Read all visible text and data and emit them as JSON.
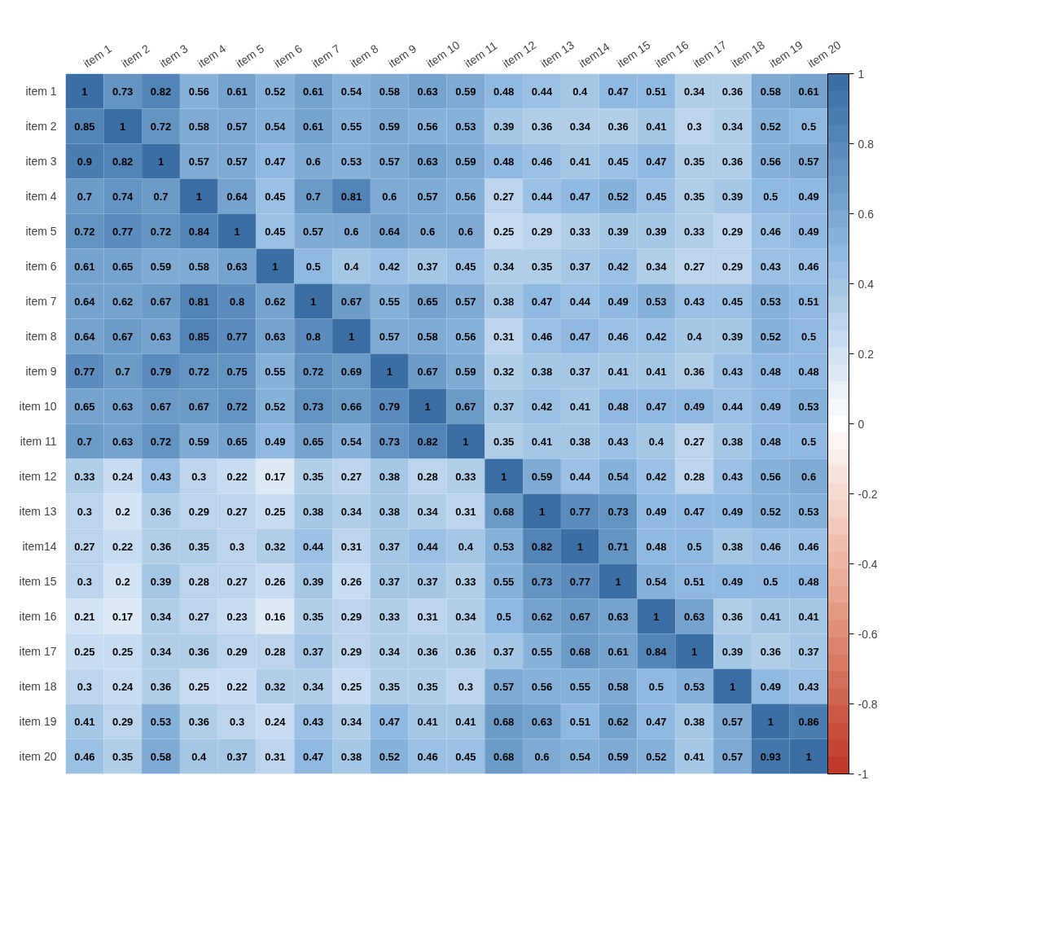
{
  "chart_data": {
    "type": "heatmap",
    "categories": [
      "item 1",
      "item 2",
      "item 3",
      "item 4",
      "item 5",
      "item 6",
      "item 7",
      "item 8",
      "item 9",
      "item 10",
      "item 11",
      "item 12",
      "item 13",
      "item14",
      "item 15",
      "item 16",
      "item 17",
      "item 18",
      "item 19",
      "item 20"
    ],
    "y_categories": [
      "item 1",
      "item 2",
      "item 3",
      "item 4",
      "item 5",
      "item 6",
      "item 7",
      "item 8",
      "item 9",
      "item 10",
      "item 11",
      "item 12",
      "item 13",
      "item14",
      "item 15",
      "item 16",
      "item 17",
      "item 18",
      "item 19",
      "item 20"
    ],
    "cells": [
      [
        1,
        0.73,
        0.82,
        0.56,
        0.61,
        0.52,
        0.61,
        0.54,
        0.58,
        0.63,
        0.59,
        0.48,
        0.44,
        0.4,
        0.47,
        0.51,
        0.34,
        0.36,
        0.58,
        0.61
      ],
      [
        0.85,
        1,
        0.72,
        0.58,
        0.57,
        0.54,
        0.61,
        0.55,
        0.59,
        0.56,
        0.53,
        0.39,
        0.36,
        0.34,
        0.36,
        0.41,
        0.3,
        0.34,
        0.52,
        0.5
      ],
      [
        0.9,
        0.82,
        1,
        0.57,
        0.57,
        0.47,
        0.6,
        0.53,
        0.57,
        0.63,
        0.59,
        0.48,
        0.46,
        0.41,
        0.45,
        0.47,
        0.35,
        0.36,
        0.56,
        0.57
      ],
      [
        0.7,
        0.74,
        0.7,
        1,
        0.64,
        0.45,
        0.7,
        0.81,
        0.6,
        0.57,
        0.56,
        0.27,
        0.44,
        0.47,
        0.52,
        0.45,
        0.35,
        0.39,
        0.5,
        0.49
      ],
      [
        0.72,
        0.77,
        0.72,
        0.84,
        1,
        0.45,
        0.57,
        0.6,
        0.64,
        0.6,
        0.6,
        0.25,
        0.29,
        0.33,
        0.39,
        0.39,
        0.33,
        0.29,
        0.46,
        0.49
      ],
      [
        0.61,
        0.65,
        0.59,
        0.58,
        0.63,
        1,
        0.5,
        0.4,
        0.42,
        0.37,
        0.45,
        0.34,
        0.35,
        0.37,
        0.42,
        0.34,
        0.27,
        0.29,
        0.43,
        0.46
      ],
      [
        0.64,
        0.62,
        0.67,
        0.81,
        0.8,
        0.62,
        1,
        0.67,
        0.55,
        0.65,
        0.57,
        0.38,
        0.47,
        0.44,
        0.49,
        0.53,
        0.43,
        0.45,
        0.53,
        0.51
      ],
      [
        0.64,
        0.67,
        0.63,
        0.85,
        0.77,
        0.63,
        0.8,
        1,
        0.57,
        0.58,
        0.56,
        0.31,
        0.46,
        0.47,
        0.46,
        0.42,
        0.4,
        0.39,
        0.52,
        0.5
      ],
      [
        0.77,
        0.7,
        0.79,
        0.72,
        0.75,
        0.55,
        0.72,
        0.69,
        1,
        0.67,
        0.59,
        0.32,
        0.38,
        0.37,
        0.41,
        0.41,
        0.36,
        0.43,
        0.48,
        0.48
      ],
      [
        0.65,
        0.63,
        0.67,
        0.67,
        0.72,
        0.52,
        0.73,
        0.66,
        0.79,
        1,
        0.67,
        0.37,
        0.42,
        0.41,
        0.48,
        0.47,
        0.49,
        0.44,
        0.49,
        0.53
      ],
      [
        0.7,
        0.63,
        0.72,
        0.59,
        0.65,
        0.49,
        0.65,
        0.54,
        0.73,
        0.82,
        1,
        0.35,
        0.41,
        0.38,
        0.43,
        0.4,
        0.27,
        0.38,
        0.48,
        0.5
      ],
      [
        0.33,
        0.24,
        0.43,
        0.3,
        0.22,
        0.17,
        0.35,
        0.27,
        0.38,
        0.28,
        0.33,
        1,
        0.59,
        0.44,
        0.54,
        0.42,
        0.28,
        0.43,
        0.56,
        0.6
      ],
      [
        0.3,
        0.2,
        0.36,
        0.29,
        0.27,
        0.25,
        0.38,
        0.34,
        0.38,
        0.34,
        0.31,
        0.68,
        1,
        0.77,
        0.73,
        0.49,
        0.47,
        0.49,
        0.52,
        0.53
      ],
      [
        0.27,
        0.22,
        0.36,
        0.35,
        0.3,
        0.32,
        0.44,
        0.31,
        0.37,
        0.44,
        0.4,
        0.53,
        0.82,
        1,
        0.71,
        0.48,
        0.5,
        0.38,
        0.46,
        0.46
      ],
      [
        0.3,
        0.2,
        0.39,
        0.28,
        0.27,
        0.26,
        0.39,
        0.26,
        0.37,
        0.37,
        0.33,
        0.55,
        0.73,
        0.77,
        1,
        0.54,
        0.51,
        0.49,
        0.5,
        0.48
      ],
      [
        0.21,
        0.17,
        0.34,
        0.27,
        0.23,
        0.16,
        0.35,
        0.29,
        0.33,
        0.31,
        0.34,
        0.5,
        0.62,
        0.67,
        0.63,
        1,
        0.63,
        0.36,
        0.41,
        0.41
      ],
      [
        0.25,
        0.25,
        0.34,
        0.36,
        0.29,
        0.28,
        0.37,
        0.29,
        0.34,
        0.36,
        0.36,
        0.37,
        0.55,
        0.68,
        0.61,
        0.84,
        1,
        0.39,
        0.36,
        0.37
      ],
      [
        0.3,
        0.24,
        0.36,
        0.25,
        0.22,
        0.32,
        0.34,
        0.25,
        0.35,
        0.35,
        0.3,
        0.57,
        0.56,
        0.55,
        0.58,
        0.5,
        0.53,
        1,
        0.49,
        0.43
      ],
      [
        0.41,
        0.29,
        0.53,
        0.36,
        0.3,
        0.24,
        0.43,
        0.34,
        0.47,
        0.41,
        0.41,
        0.68,
        0.63,
        0.51,
        0.62,
        0.47,
        0.38,
        0.57,
        1,
        0.86
      ],
      [
        0.46,
        0.35,
        0.58,
        0.4,
        0.37,
        0.31,
        0.47,
        0.38,
        0.52,
        0.46,
        0.45,
        0.68,
        0.6,
        0.54,
        0.59,
        0.52,
        0.41,
        0.57,
        0.93,
        1
      ]
    ],
    "data_labels": true,
    "clim": [
      -1,
      1
    ],
    "cticks": [
      -1,
      -0.8,
      -0.6,
      -0.4,
      -0.2,
      0,
      0.2,
      0.4,
      0.6,
      0.8,
      1
    ]
  }
}
